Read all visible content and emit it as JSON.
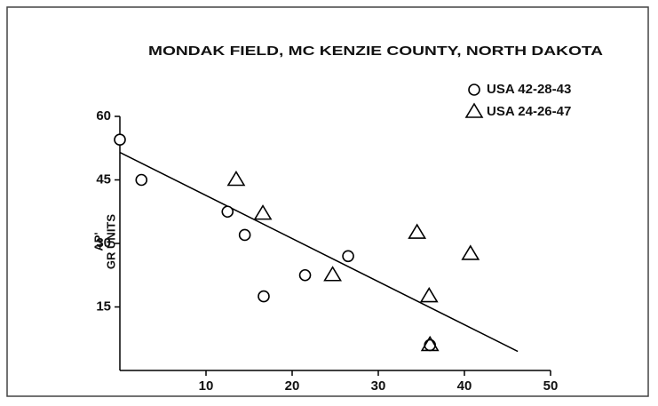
{
  "chart_data": {
    "type": "scatter",
    "title": "MONDAK FIELD, MC KENZIE COUNTY, NORTH DAKOTA",
    "ylabel": [
      "AP'",
      "GR UNITS"
    ],
    "series": [
      {
        "name": "USA 42-28-43",
        "marker": "circle",
        "color": "#000000",
        "x": [
          0,
          2.5,
          12.5,
          14.5,
          16.7,
          21.5,
          26.5,
          36
        ],
        "values": [
          54.5,
          45,
          37.5,
          32,
          17.5,
          22.5,
          27,
          6
        ]
      },
      {
        "name": "USA 24-26-47",
        "marker": "triangle",
        "color": "#000000",
        "x": [
          13.5,
          16.6,
          24.7,
          34.5,
          35.9,
          36,
          40.7
        ],
        "values": [
          45,
          37,
          22.5,
          32.5,
          17.5,
          6,
          27.5
        ]
      }
    ],
    "trend_line": {
      "x": [
        0,
        46.2
      ],
      "values": [
        51.5,
        4.5
      ],
      "color": "#000000"
    },
    "xlim": [
      0,
      50
    ],
    "xticks": [
      10,
      20,
      30,
      40,
      50
    ],
    "ylim": [
      0,
      60
    ],
    "yticks": [
      15,
      30,
      45,
      60
    ]
  }
}
